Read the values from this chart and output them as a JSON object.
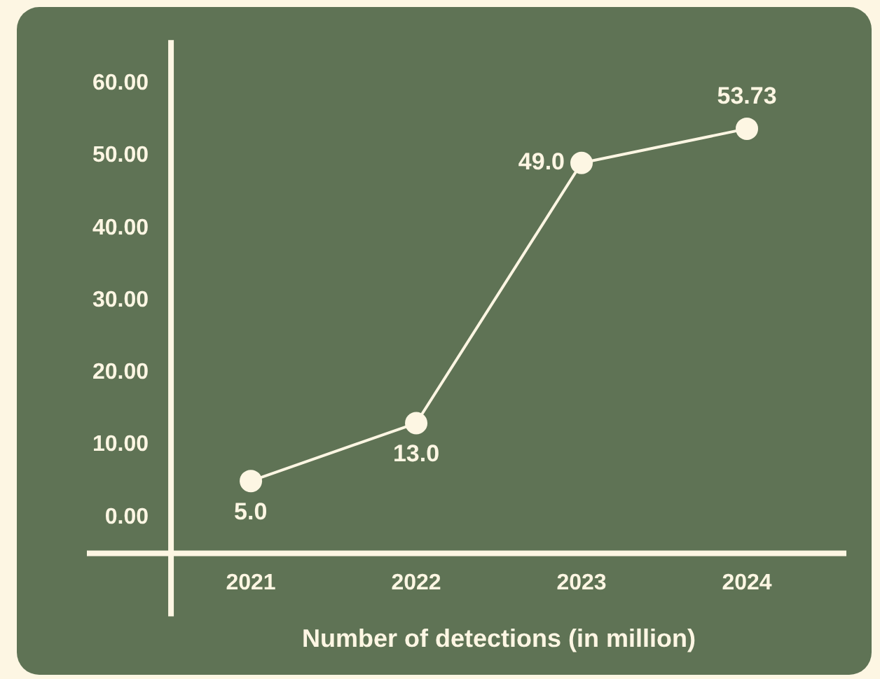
{
  "chart_data": {
    "type": "line",
    "xlabel": "Number of detections (in million)",
    "categories": [
      "2021",
      "2022",
      "2023",
      "2024"
    ],
    "series": [
      {
        "color": "#fdf6e3",
        "values": [
          5,
          13,
          49,
          53.73
        ],
        "value_labels": [
          "5.0",
          "13.0",
          "49.0",
          "53.73"
        ]
      }
    ],
    "ylim": [
      -5,
      66
    ],
    "yticks": [
      {
        "value": 0,
        "label": "0.00"
      },
      {
        "value": 10,
        "label": "10.00"
      },
      {
        "value": 20,
        "label": "20.00"
      },
      {
        "value": 30,
        "label": "30.00"
      },
      {
        "value": 40,
        "label": "40.00"
      },
      {
        "value": 50,
        "label": "50.00"
      },
      {
        "value": 60,
        "label": "60.00"
      }
    ],
    "grid": false,
    "legend": false,
    "marker": "circle",
    "line_style": "solid"
  }
}
